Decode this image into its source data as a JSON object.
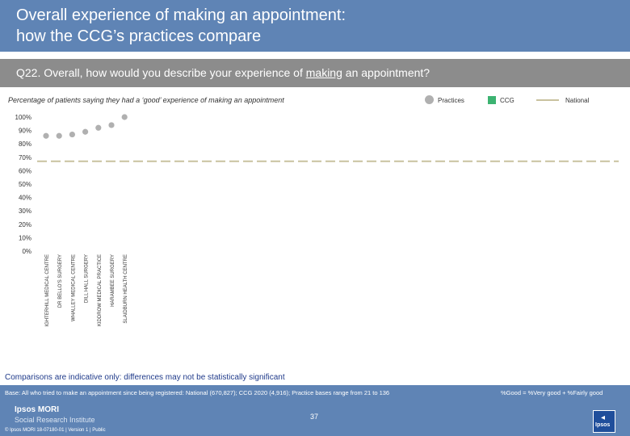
{
  "header": {
    "title_line1": "Overall experience of making an appointment:",
    "title_line2": "how the CCG’s practices compare"
  },
  "question": {
    "prefix": "Q22. Overall, how would you describe your experience of ",
    "underlined": "making",
    "suffix": " an appointment?"
  },
  "subtitle": "Percentage of patients saying they had a ‘good’ experience of making an appointment",
  "legend": {
    "practices": "Practices",
    "ccg": "CCG",
    "national": "National"
  },
  "colors": {
    "practice_marker": "#b0b0b0",
    "ccg": "#3cb371",
    "national": "#c9c29f",
    "header": "#5f84b5",
    "question_bar": "#8c8c8c"
  },
  "chart_data": {
    "type": "scatter",
    "categories": [
      "IGHTERHILL MEDICAL CENTRE",
      "DR BELLO'S SURGERY",
      "WHALLEY MEDICAL CENTRE",
      "DILL HALL SURGERY",
      "KIDDROW MEDICAL PRACTICE",
      "HARAMBEE SURGERY",
      "SLAIDBURN HEALTH CENTRE"
    ],
    "values": [
      86,
      86,
      87,
      89,
      92,
      94,
      100
    ],
    "national": 67,
    "yticks": [
      "0%",
      "10%",
      "20%",
      "30%",
      "40%",
      "50%",
      "60%",
      "70%",
      "80%",
      "90%",
      "100%"
    ],
    "ylim": [
      0,
      100
    ],
    "grid": false
  },
  "footer": {
    "note": "Comparisons are indicative only: differences may not be statistically significant",
    "base": "Base: All who tried to make an appointment since being registered: National (670,827); CCG 2020 (4,916); Practice bases range from 21 to 136",
    "good_def": "%Good = %Very good + %Fairly good",
    "brand_line1": "Ipsos MORI",
    "brand_line2": "Social Research Institute",
    "copyright": "© Ipsos MORI      18-07180-01 | Version 1 | Public",
    "page": "37",
    "logo_text": "Ipsos"
  }
}
